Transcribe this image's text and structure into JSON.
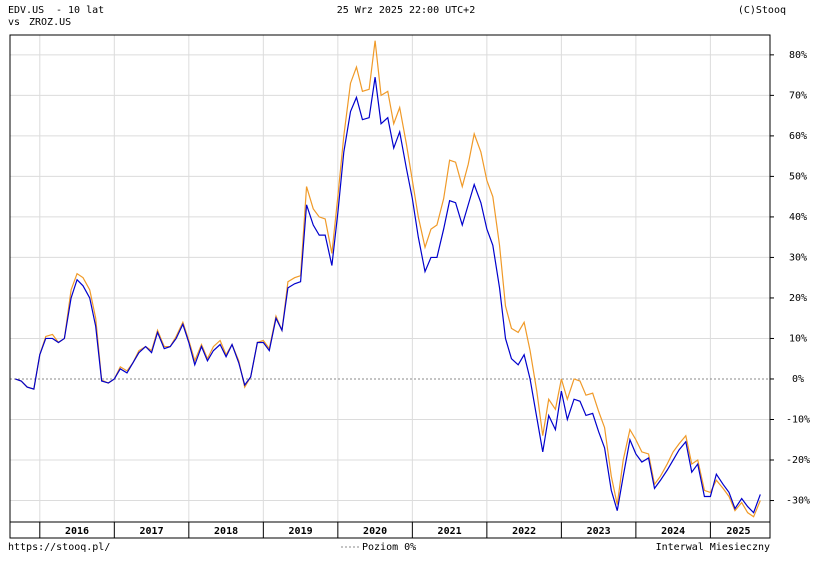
{
  "chart_data": {
    "type": "line",
    "header": {
      "period": "- 10 lat",
      "vs": "vs",
      "date": "25 Wrz 2025 22:00 UTC+2",
      "source": "(C)Stooq"
    },
    "footer": {
      "url": "https://stooq.pl/",
      "interval": "Interwal Miesieczny"
    },
    "reference_line": {
      "value": 0,
      "label": "Poziom 0%",
      "color": "#888888"
    },
    "x": [
      2015.67,
      2015.75,
      2015.83,
      2015.92,
      2016,
      2016.08,
      2016.17,
      2016.25,
      2016.33,
      2016.42,
      2016.5,
      2016.58,
      2016.67,
      2016.75,
      2016.83,
      2016.92,
      2017,
      2017.08,
      2017.17,
      2017.25,
      2017.33,
      2017.42,
      2017.5,
      2017.58,
      2017.67,
      2017.75,
      2017.83,
      2017.92,
      2018,
      2018.08,
      2018.17,
      2018.25,
      2018.33,
      2018.42,
      2018.5,
      2018.58,
      2018.67,
      2018.75,
      2018.83,
      2018.92,
      2019,
      2019.08,
      2019.17,
      2019.25,
      2019.33,
      2019.42,
      2019.5,
      2019.58,
      2019.67,
      2019.75,
      2019.83,
      2019.92,
      2020,
      2020.08,
      2020.17,
      2020.25,
      2020.33,
      2020.42,
      2020.5,
      2020.58,
      2020.67,
      2020.75,
      2020.83,
      2020.92,
      2021,
      2021.08,
      2021.17,
      2021.25,
      2021.33,
      2021.42,
      2021.5,
      2021.58,
      2021.67,
      2021.75,
      2021.83,
      2021.92,
      2022,
      2022.08,
      2022.17,
      2022.25,
      2022.33,
      2022.42,
      2022.5,
      2022.58,
      2022.67,
      2022.75,
      2022.83,
      2022.92,
      2023,
      2023.08,
      2023.17,
      2023.25,
      2023.33,
      2023.42,
      2023.5,
      2023.58,
      2023.67,
      2023.75,
      2023.83,
      2023.92,
      2024,
      2024.08,
      2024.17,
      2024.25,
      2024.33,
      2024.42,
      2024.5,
      2024.58,
      2024.67,
      2024.75,
      2024.83,
      2024.92,
      2025,
      2025.08,
      2025.17,
      2025.25,
      2025.33,
      2025.42,
      2025.5,
      2025.58,
      2025.67
    ],
    "series": [
      {
        "name": "EDV.US",
        "color": "#0000cc",
        "values": [
          0,
          -0.5,
          -2,
          -2.5,
          6,
          10,
          10,
          9,
          10,
          20,
          24.5,
          23,
          20,
          13,
          -0.5,
          -1,
          0,
          2.5,
          1.5,
          4,
          6.5,
          8,
          6.5,
          11.5,
          7.5,
          8,
          10,
          13.5,
          9,
          3.5,
          8,
          4.5,
          7,
          8.5,
          5.5,
          8.5,
          4,
          -1.5,
          0.5,
          9,
          9,
          7,
          15,
          12,
          22.5,
          23.5,
          24,
          43,
          38,
          35.5,
          35.5,
          28,
          41,
          56,
          66,
          69.5,
          64,
          64.5,
          74.5,
          63,
          64.5,
          57,
          61,
          52,
          44.5,
          35,
          26.5,
          30,
          30,
          37,
          44,
          43.5,
          38,
          43,
          48,
          43.5,
          37,
          33,
          22.5,
          10,
          5,
          3.5,
          6,
          0,
          -9.5,
          -18,
          -9,
          -12.5,
          -3,
          -10,
          -5,
          -5.5,
          -9,
          -8.5,
          -13,
          -17,
          -27.5,
          -32.5,
          -24,
          -15,
          -18.5,
          -20.5,
          -19.5,
          -27,
          -25,
          -22.5,
          -20,
          -17.5,
          -15.5,
          -23,
          -21,
          -29,
          -29,
          -23.5,
          -26,
          -28,
          -32,
          -29.5,
          -31.5,
          -33,
          -28.5
        ]
      },
      {
        "name": "ZROZ.US",
        "color": "#f09a28",
        "values": [
          0,
          -0.5,
          -2,
          -2.5,
          6,
          10.5,
          11,
          9,
          10,
          22,
          26,
          25,
          22,
          15,
          -0.3,
          -1,
          0,
          3,
          2,
          4,
          7,
          8,
          7,
          12,
          8,
          8,
          10.5,
          14,
          9.5,
          4.5,
          8.5,
          5,
          8,
          9.5,
          6,
          8.5,
          4.5,
          -2,
          0.5,
          9,
          9.5,
          7.5,
          15.5,
          12,
          24,
          25,
          25.5,
          47.5,
          42,
          40,
          39.5,
          31,
          45,
          60,
          73,
          77,
          71,
          71.5,
          83.5,
          70,
          71,
          63,
          67,
          58,
          49,
          40,
          32.5,
          37,
          38,
          44.5,
          54,
          53.5,
          47.5,
          53,
          60.5,
          56,
          49,
          45,
          33,
          18,
          12.5,
          11.5,
          14,
          7,
          -3,
          -14,
          -5,
          -7.5,
          0,
          -5,
          0,
          -0.5,
          -4,
          -3.5,
          -8,
          -12,
          -24,
          -31,
          -20,
          -12.5,
          -15,
          -18,
          -18.5,
          -26,
          -24,
          -21,
          -18,
          -16,
          -14,
          -21,
          -20,
          -27.5,
          -28,
          -25,
          -27,
          -29,
          -32.5,
          -30.5,
          -33,
          -34,
          -30
        ]
      }
    ],
    "xlim": [
      2015.6,
      2025.8
    ],
    "xticks": [
      2016,
      2017,
      2018,
      2019,
      2020,
      2021,
      2022,
      2023,
      2024,
      2025
    ],
    "ylim": [
      -35.3,
      84.9
    ],
    "yticks": [
      {
        "value": -30,
        "label": "-30%"
      },
      {
        "value": -20,
        "label": "-20%"
      },
      {
        "value": -10,
        "label": "-10%"
      },
      {
        "value": 0,
        "label": "0%"
      },
      {
        "value": 10,
        "label": "10%"
      },
      {
        "value": 20,
        "label": "20%"
      },
      {
        "value": 30,
        "label": "30%"
      },
      {
        "value": 40,
        "label": "40%"
      },
      {
        "value": 50,
        "label": "50%"
      },
      {
        "value": 60,
        "label": "60%"
      },
      {
        "value": 70,
        "label": "70%"
      },
      {
        "value": 80,
        "label": "80%"
      }
    ],
    "grid": true
  }
}
